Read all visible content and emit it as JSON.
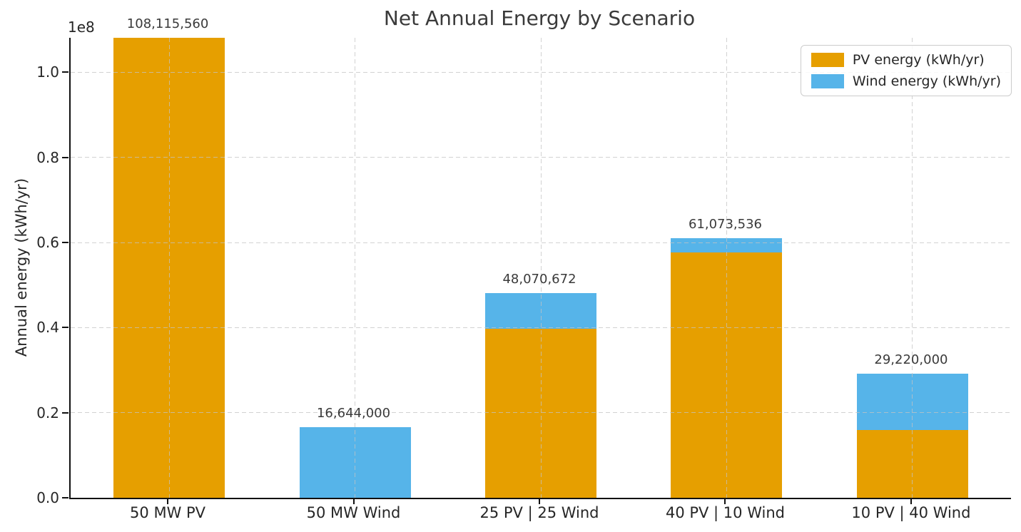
{
  "figure": {
    "background": "#ffffff",
    "text_color": "#333333",
    "spine_color": "#111111",
    "grid_color": "#c3c3c3"
  },
  "chart_data": {
    "type": "bar",
    "stacked": true,
    "title": "Net Annual Energy by Scenario",
    "xlabel": "",
    "ylabel": "Annual energy (kWh/yr)",
    "y_offset_label": "1e8",
    "categories": [
      "50 MW PV",
      "50 MW Wind",
      "25 PV | 25 Wind",
      "40 PV | 10 Wind",
      "10 PV | 40 Wind"
    ],
    "series": [
      {
        "name": "PV energy (kWh/yr)",
        "color": "#E69F00",
        "values": [
          108115560,
          0,
          39748672,
          57744736,
          15904800
        ]
      },
      {
        "name": "Wind energy (kWh/yr)",
        "color": "#56B4E9",
        "values": [
          0,
          16644000,
          8322000,
          3328800,
          13315200
        ]
      }
    ],
    "bar_totals": [
      108115560,
      16644000,
      48070672,
      61073536,
      29220000
    ],
    "bar_total_labels": [
      "108,115,560",
      "16,644,000",
      "48,070,672",
      "61,073,536",
      "29,220,000"
    ],
    "ytick_values": [
      0,
      20000000,
      40000000,
      60000000,
      80000000,
      100000000
    ],
    "ytick_labels": [
      "0.0",
      "0.2",
      "0.4",
      "0.6",
      "0.8",
      "1.0"
    ],
    "ylim": [
      0,
      108115560
    ],
    "grid": {
      "style": "dashed",
      "axes": "both",
      "drawn_over_bars": true
    },
    "legend_position": "upper right"
  }
}
